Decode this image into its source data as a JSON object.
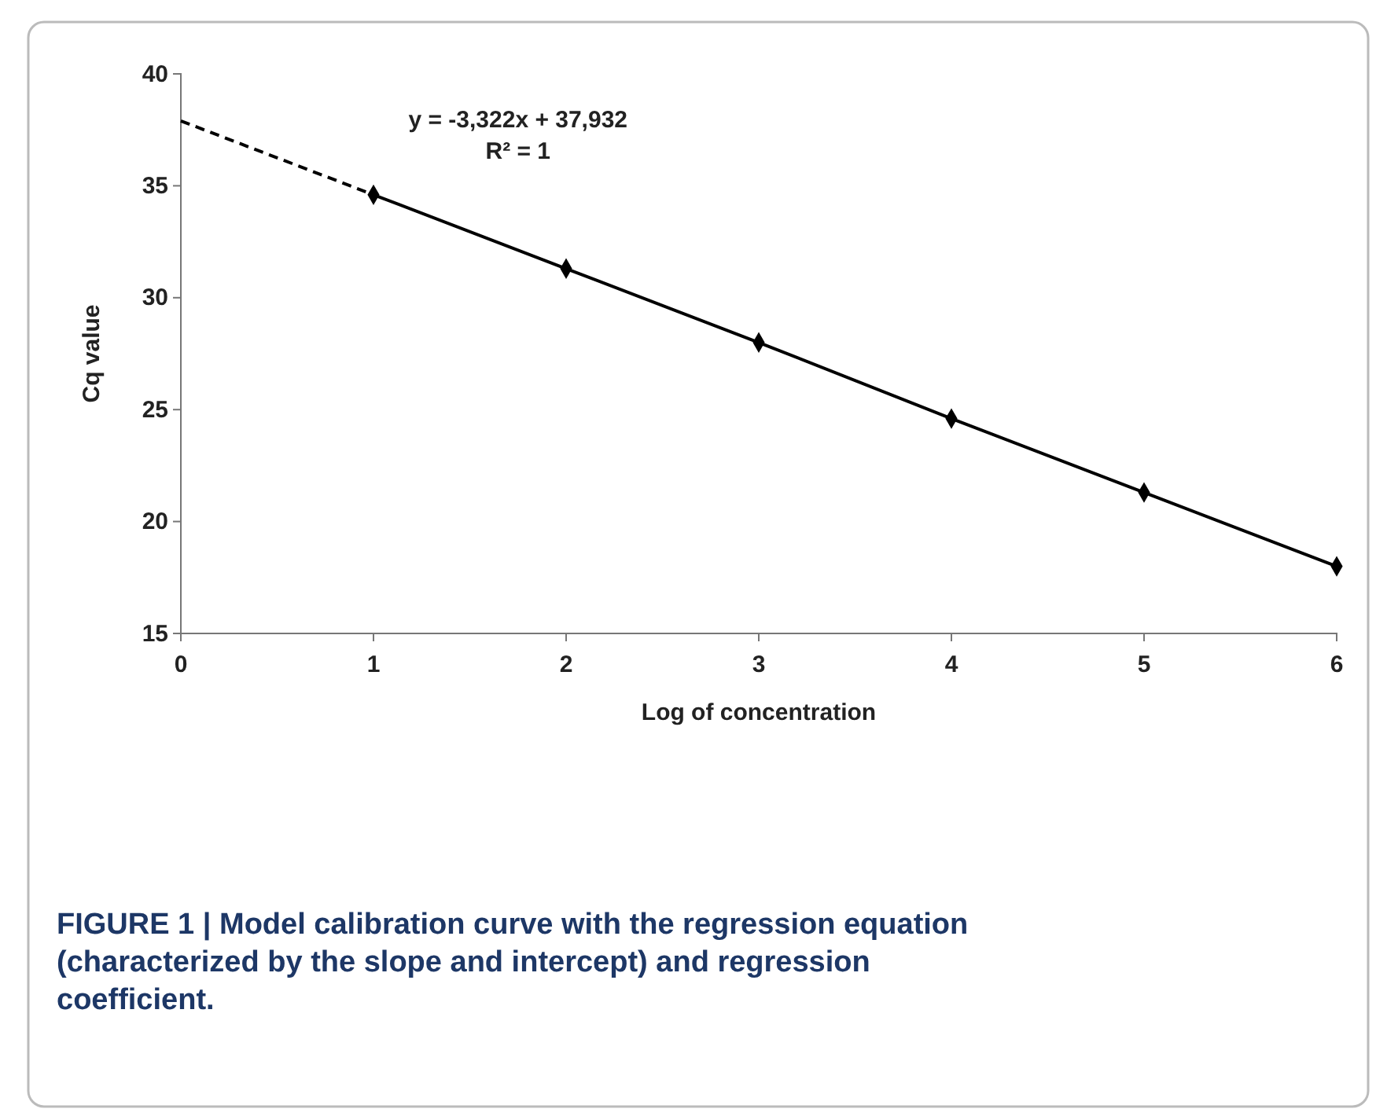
{
  "chart_data": {
    "type": "line",
    "xlabel": "Log of concentration",
    "ylabel": "Cq value",
    "series": [
      {
        "x": [
          1,
          2,
          3,
          4,
          5,
          6
        ],
        "values": [
          34.6,
          31.3,
          28.0,
          24.6,
          21.3,
          18.0
        ],
        "color": "#000000",
        "marker": "diamond",
        "line_style": "solid"
      },
      {
        "x": [
          0,
          1
        ],
        "values": [
          37.9,
          34.6
        ],
        "color": "#000000",
        "marker": "none",
        "line_style": "dashed"
      }
    ],
    "xlim": [
      0,
      6
    ],
    "xticks": [
      0,
      1,
      2,
      3,
      4,
      5,
      6
    ],
    "ylim": [
      15,
      40
    ],
    "yticks": [
      15,
      20,
      25,
      30,
      35,
      40
    ],
    "grid": false,
    "annotations": [
      "y = -3,322x + 37,932",
      "R² = 1",
      "FIGURE 1 | Model calibration curve with the regression equation (characterized by the slope and intercept) and regression coefficient."
    ]
  }
}
